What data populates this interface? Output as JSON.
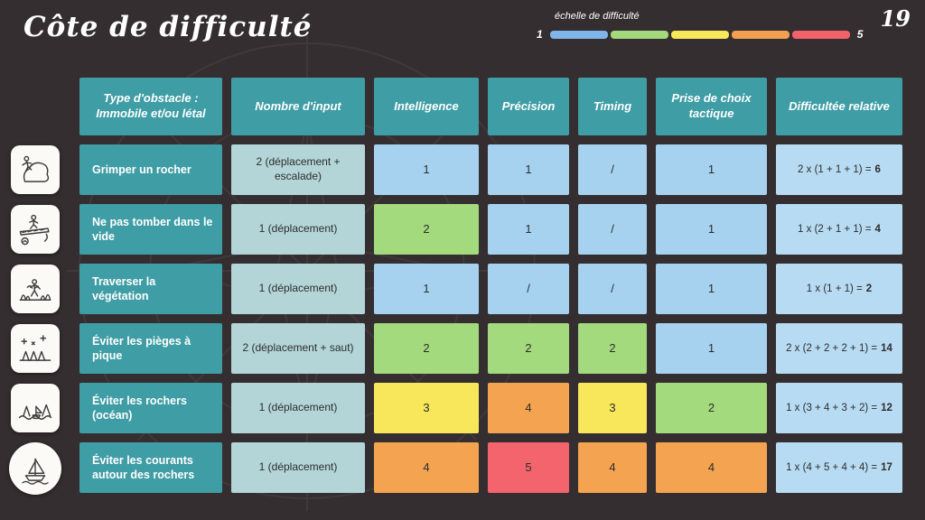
{
  "slide": {
    "title": "Côte de difficulté",
    "page_number": "19"
  },
  "difficulty_scale": {
    "label": "échelle de difficulté",
    "min_label": "1",
    "max_label": "5",
    "segment_colors": [
      "#7fb5e8",
      "#a3d97b",
      "#f7e75a",
      "#f0a04f",
      "#f1626b"
    ]
  },
  "level_colors": {
    "1": "#a6d2f0",
    "2": "#a3da7d",
    "3": "#f8e75b",
    "4": "#f4a351",
    "5": "#f4646c",
    "slash": "#a6d2f0"
  },
  "table": {
    "headers": [
      "Type d'obstacle : Immobile et/ou létal",
      "Nombre d'input",
      "Intelligence",
      "Précision",
      "Timing",
      "Prise de choix tactique",
      "Difficultée relative"
    ],
    "rows": [
      {
        "obstacle": "Grimper un rocher",
        "inputs": "2 (déplacement + escalade)",
        "intelligence": {
          "value": "1",
          "level": "1"
        },
        "precision": {
          "value": "1",
          "level": "1"
        },
        "timing": {
          "value": "/",
          "level": "slash"
        },
        "tactique": {
          "value": "1",
          "level": "1"
        },
        "relative": {
          "formula": "2 x (1 + 1 + 1) =",
          "result": "6"
        }
      },
      {
        "obstacle": "Ne pas tomber dans le vide",
        "inputs": "1 (déplacement)",
        "intelligence": {
          "value": "2",
          "level": "2"
        },
        "precision": {
          "value": "1",
          "level": "1"
        },
        "timing": {
          "value": "/",
          "level": "slash"
        },
        "tactique": {
          "value": "1",
          "level": "1"
        },
        "relative": {
          "formula": "1 x (2 + 1 + 1) =",
          "result": "4"
        }
      },
      {
        "obstacle": "Traverser la végétation",
        "inputs": "1 (déplacement)",
        "intelligence": {
          "value": "1",
          "level": "1"
        },
        "precision": {
          "value": "/",
          "level": "slash"
        },
        "timing": {
          "value": "/",
          "level": "slash"
        },
        "tactique": {
          "value": "1",
          "level": "1"
        },
        "relative": {
          "formula": "1 x (1 + 1) =",
          "result": "2"
        }
      },
      {
        "obstacle": "Éviter les pièges à pique",
        "inputs": "2 (déplacement + saut)",
        "intelligence": {
          "value": "2",
          "level": "2"
        },
        "precision": {
          "value": "2",
          "level": "2"
        },
        "timing": {
          "value": "2",
          "level": "2"
        },
        "tactique": {
          "value": "1",
          "level": "1"
        },
        "relative": {
          "formula": "2 x (2 + 2 + 2 + 1) =",
          "result": "14"
        }
      },
      {
        "obstacle": "Éviter les rochers (océan)",
        "inputs": "1 (déplacement)",
        "intelligence": {
          "value": "3",
          "level": "3"
        },
        "precision": {
          "value": "4",
          "level": "4"
        },
        "timing": {
          "value": "3",
          "level": "3"
        },
        "tactique": {
          "value": "2",
          "level": "2"
        },
        "relative": {
          "formula": "1 x (3 + 4 + 3 + 2) =",
          "result": "12"
        }
      },
      {
        "obstacle": "Éviter les courants autour des rochers",
        "inputs": "1 (déplacement)",
        "intelligence": {
          "value": "4",
          "level": "4"
        },
        "precision": {
          "value": "5",
          "level": "5"
        },
        "timing": {
          "value": "4",
          "level": "4"
        },
        "tactique": {
          "value": "4",
          "level": "4"
        },
        "relative": {
          "formula": "1 x (4 + 5 + 4 + 4) =",
          "result": "17"
        }
      }
    ]
  }
}
